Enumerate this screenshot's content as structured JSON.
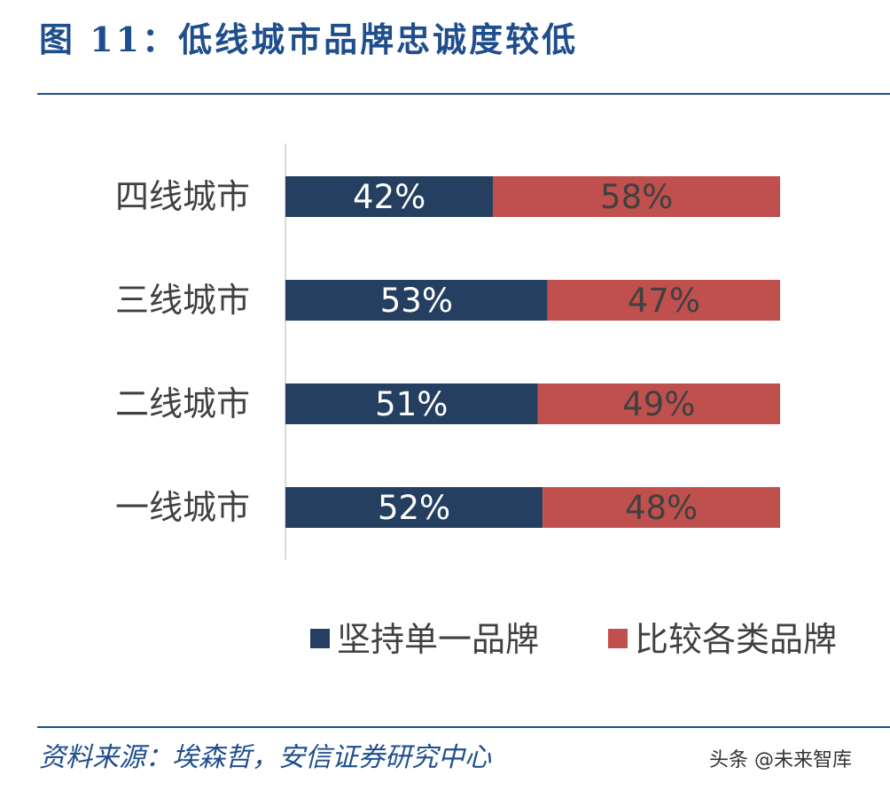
{
  "figure": {
    "title": "图 11：低线城市品牌忠诚度较低",
    "source": "资料来源：埃森哲，安信证券研究中心",
    "watermark": "头条 @未来智库"
  },
  "colors": {
    "series_1": "#243f60",
    "series_2": "#c0504d",
    "title_blue": "#1f4e8c"
  },
  "chart_data": {
    "type": "bar",
    "orientation": "horizontal",
    "stacked": "100%",
    "categories": [
      "四线城市",
      "三线城市",
      "二线城市",
      "一线城市"
    ],
    "series": [
      {
        "name": "坚持单一品牌",
        "values": [
          42,
          53,
          51,
          52
        ],
        "labels": [
          "42%",
          "53%",
          "51%",
          "52%"
        ]
      },
      {
        "name": "比较各类品牌",
        "values": [
          58,
          47,
          49,
          48
        ],
        "labels": [
          "58%",
          "47%",
          "49%",
          "48%"
        ]
      }
    ],
    "xlim": [
      0,
      100
    ],
    "grid": false,
    "legend": "bottom"
  }
}
